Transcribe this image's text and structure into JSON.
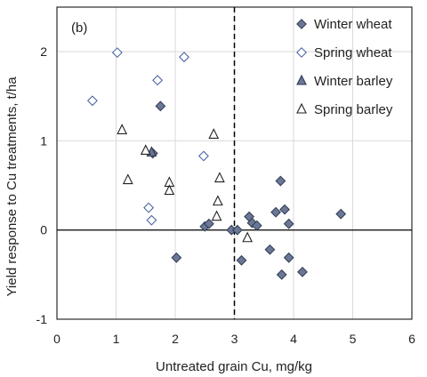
{
  "chart_data": {
    "type": "scatter",
    "panel_label": "(b)",
    "xlabel": "Untreated grain Cu, mg/kg",
    "ylabel": "Yield response to Cu treatments, t/ha",
    "xlim": [
      0,
      6
    ],
    "ylim": [
      -1,
      2.5
    ],
    "xticks": [
      0,
      1,
      2,
      3,
      4,
      5,
      6
    ],
    "yticks": [
      -1,
      0,
      1,
      2
    ],
    "grid": true,
    "legend_position": "top-right",
    "reference_line_x": 3,
    "colors": {
      "filled": "#6a7896",
      "outline": "#222222",
      "grid": "#d9d9d9"
    },
    "series": [
      {
        "name": "Winter wheat",
        "marker": "diamond",
        "fill": "filled",
        "points": [
          [
            1.75,
            1.39
          ],
          [
            1.62,
            0.86
          ],
          [
            2.02,
            -0.31
          ],
          [
            2.5,
            0.04
          ],
          [
            2.57,
            0.07
          ],
          [
            2.95,
            0.0
          ],
          [
            3.05,
            0.0
          ],
          [
            3.12,
            -0.34
          ],
          [
            3.25,
            0.15
          ],
          [
            3.3,
            0.08
          ],
          [
            3.38,
            0.05
          ],
          [
            3.6,
            -0.22
          ],
          [
            3.7,
            0.2
          ],
          [
            3.78,
            0.55
          ],
          [
            3.8,
            -0.5
          ],
          [
            3.85,
            0.23
          ],
          [
            3.92,
            0.07
          ],
          [
            3.92,
            -0.31
          ],
          [
            4.15,
            -0.47
          ],
          [
            4.8,
            0.18
          ]
        ]
      },
      {
        "name": "Spring wheat",
        "marker": "diamond",
        "fill": "open",
        "points": [
          [
            0.6,
            1.45
          ],
          [
            1.02,
            1.99
          ],
          [
            1.7,
            1.68
          ],
          [
            2.15,
            1.94
          ],
          [
            2.48,
            0.83
          ],
          [
            1.55,
            0.25
          ],
          [
            1.6,
            0.11
          ]
        ]
      },
      {
        "name": "Winter barley",
        "marker": "triangle",
        "fill": "filled",
        "points": [
          [
            1.6,
            0.87
          ]
        ]
      },
      {
        "name": "Spring barley",
        "marker": "triangle",
        "fill": "open",
        "points": [
          [
            1.1,
            1.12
          ],
          [
            1.2,
            0.56
          ],
          [
            1.5,
            0.89
          ],
          [
            1.9,
            0.53
          ],
          [
            1.9,
            0.44
          ],
          [
            2.65,
            1.07
          ],
          [
            2.72,
            0.32
          ],
          [
            2.7,
            0.15
          ],
          [
            2.75,
            0.58
          ],
          [
            3.22,
            -0.09
          ]
        ]
      }
    ]
  }
}
